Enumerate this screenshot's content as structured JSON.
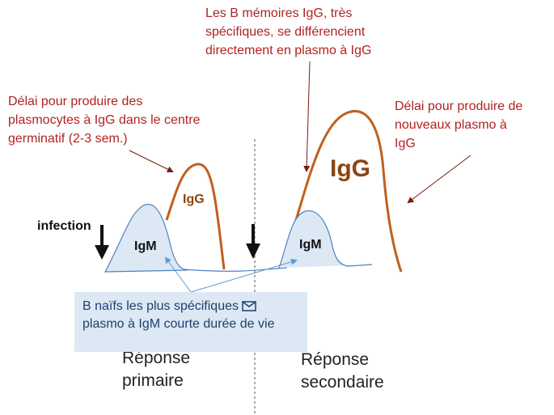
{
  "notes": {
    "top": "Les B mémoires IgG, très\nspécifiques, se différencient\ndirectement en plasmo à IgG",
    "left": "Délai pour produire des\nplasmocytes à IgG dans le centre\ngerminatif (2-3 sem.)",
    "right": "Délai pour produire de\nnouveaux  plasmo à\nIgG"
  },
  "labels": {
    "infection": "infection",
    "igm_primary": "IgM",
    "igg_primary": "IgG",
    "igm_secondary": "IgM",
    "igg_secondary": "IgG"
  },
  "callout": {
    "text_before_icon": "B naïfs les plus spécifiques ",
    "text_after_icon": "plasmo à IgM courte durée de vie",
    "icon": "envelope-icon"
  },
  "phases": {
    "primary": "Réponse\nprimaire",
    "secondary": "Réponse\nsecondaire"
  },
  "colors": {
    "note_red": "#b22222",
    "igg_curve": "#c0601e",
    "igm_fill": "#dce8f4",
    "igm_stroke": "#4f81bd",
    "callout_bg": "#dce8f4"
  }
}
